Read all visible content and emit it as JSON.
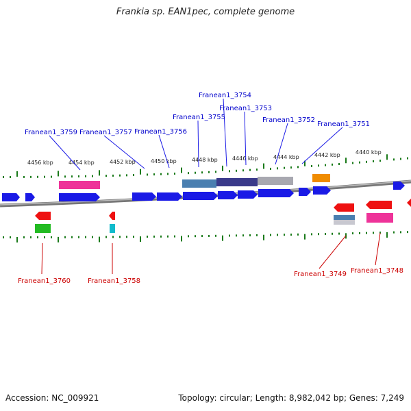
{
  "title": "Frankia sp. EAN1pec, complete genome",
  "footer": {
    "accession": "Accession: NC_009921",
    "topology": "Topology: circular; Length: 8,982,042 bp; Genes: 7,249"
  },
  "colors": {
    "forward_gene": "#1a1ae6",
    "reverse_gene": "#ee1111",
    "pink": "#ee3399",
    "steel_blue": "#4a7fb0",
    "dark_purple": "#3a3a8a",
    "gray": "#a8a8b0",
    "orange": "#f08c00",
    "green": "#22bb22",
    "cyan": "#11bbcc",
    "tick": "#1a7a1a",
    "backbone": "#888888",
    "label_forward": "#0000cc",
    "label_reverse": "#cc0000"
  },
  "scale_labels": [
    "4456 kbp",
    "4454 kbp",
    "4452 kbp",
    "4450 kbp",
    "4448 kbp",
    "4446 kbp",
    "4444 kbp",
    "4442 kbp",
    "4440 kbp"
  ],
  "forward_labels": [
    "Franean1_3759",
    "Franean1_3757",
    "Franean1_3756",
    "Franean1_3755",
    "Franean1_3754",
    "Franean1_3753",
    "Franean1_3752",
    "Franean1_3751"
  ],
  "reverse_labels": [
    "Franean1_3760",
    "Franean1_3758",
    "Franean1_3749",
    "Franean1_3748"
  ]
}
